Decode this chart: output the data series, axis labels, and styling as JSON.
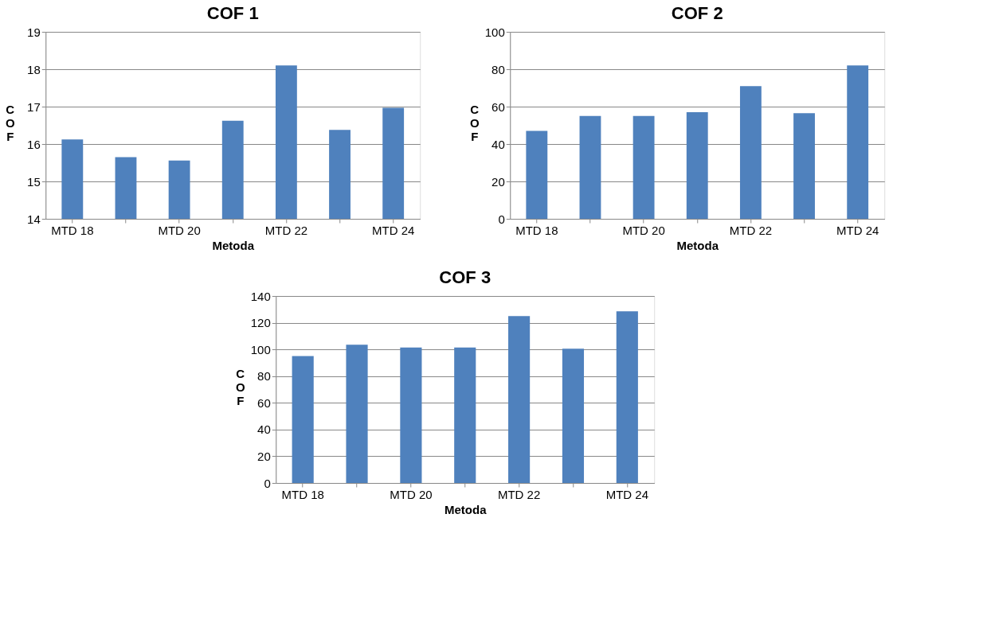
{
  "chart_data": [
    {
      "type": "bar",
      "title": "COF 1",
      "xlabel": "Metoda",
      "ylabel": "COF",
      "categories": [
        "MTD 18",
        null,
        "MTD 20",
        null,
        "MTD 22",
        null,
        "MTD 24"
      ],
      "values": [
        16.12,
        15.65,
        15.56,
        16.62,
        18.1,
        16.38,
        16.97
      ],
      "color": "#4f81bd",
      "ylim": [
        14,
        19
      ],
      "yticks": [
        14,
        15,
        16,
        17,
        18,
        19
      ],
      "grid": "y"
    },
    {
      "type": "bar",
      "title": "COF 2",
      "xlabel": "Metoda",
      "ylabel": "COF",
      "categories": [
        "MTD 18",
        null,
        "MTD 20",
        null,
        "MTD 22",
        null,
        "MTD 24"
      ],
      "values": [
        47,
        55,
        55,
        57,
        71,
        56.5,
        82
      ],
      "color": "#4f81bd",
      "ylim": [
        0,
        100
      ],
      "yticks": [
        0,
        20,
        40,
        60,
        80,
        100
      ],
      "grid": "y"
    },
    {
      "type": "bar",
      "title": "COF 3",
      "xlabel": "Metoda",
      "ylabel": "COF",
      "categories": [
        "MTD 18",
        null,
        "MTD 20",
        null,
        "MTD 22",
        null,
        "MTD 24"
      ],
      "values": [
        95,
        103.5,
        101.5,
        101.5,
        125,
        100.5,
        128.5
      ],
      "color": "#4f81bd",
      "ylim": [
        0,
        140
      ],
      "yticks": [
        0,
        20,
        40,
        60,
        80,
        100,
        120,
        140
      ],
      "grid": "y"
    }
  ]
}
